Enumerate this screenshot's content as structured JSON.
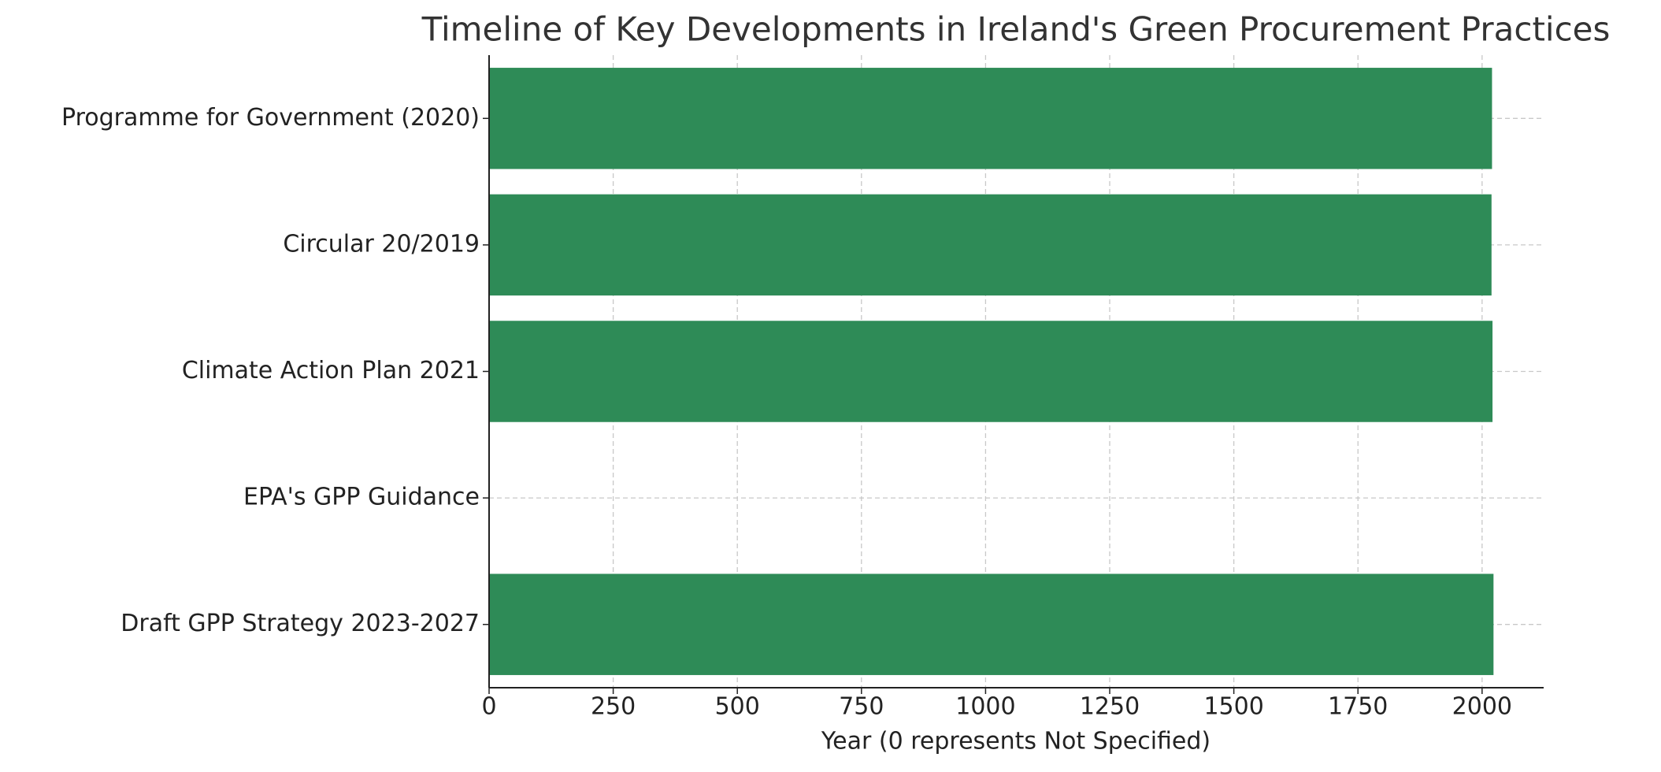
{
  "chart_data": {
    "type": "barh",
    "title": "Timeline of Key Developments in Ireland's Green Procurement Practices",
    "x_label": "Year (0 represents Not Specified)",
    "categories": [
      "Programme for Government (2020)",
      "Circular 20/2019",
      "Climate Action Plan 2021",
      "EPA's GPP Guidance",
      "Draft GPP Strategy 2023-2027"
    ],
    "values": [
      2020,
      2019,
      2021,
      0,
      2023
    ],
    "color": "#2e8b57",
    "xlim": [
      0,
      2124
    ],
    "xticks": [
      0,
      250,
      500,
      750,
      1000,
      1250,
      1500,
      1750,
      2000
    ],
    "grid": true
  }
}
